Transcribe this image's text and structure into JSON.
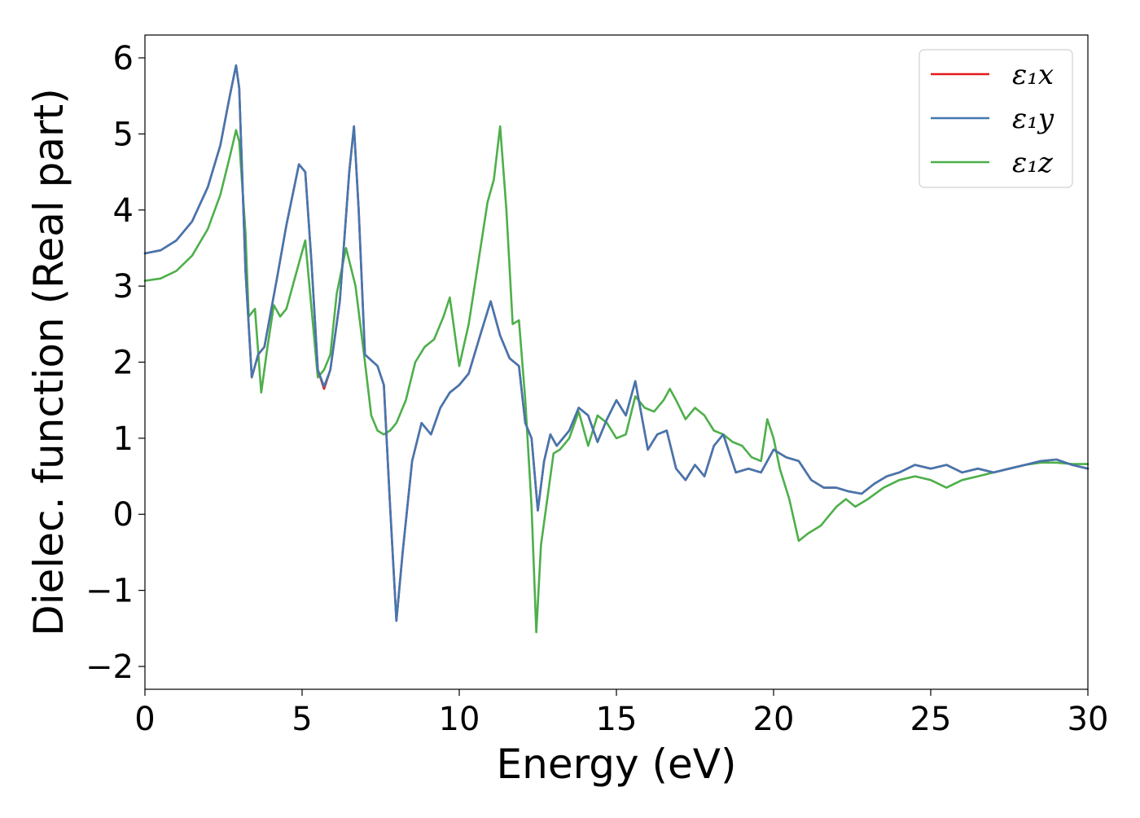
{
  "chart_data": {
    "type": "line",
    "title": "",
    "xlabel": "Energy (eV)",
    "ylabel": "Dielec. function (Real part)",
    "xlim": [
      0,
      30
    ],
    "ylim": [
      -2.3,
      6.3
    ],
    "xticks": [
      0,
      5,
      10,
      15,
      20,
      25,
      30
    ],
    "xtick_labels": [
      "0",
      "5",
      "10",
      "15",
      "20",
      "25",
      "30"
    ],
    "yticks": [
      -2,
      -1,
      0,
      1,
      2,
      3,
      4,
      5,
      6
    ],
    "ytick_labels": [
      "−2",
      "−1",
      "0",
      "1",
      "2",
      "3",
      "4",
      "5",
      "6"
    ],
    "grid": false,
    "legend_position": "top-right",
    "series": [
      {
        "name": "ε₁x",
        "color": "#e41a1c",
        "x": [
          0,
          0.5,
          1.0,
          1.5,
          2.0,
          2.4,
          2.7,
          2.9,
          3.0,
          3.2,
          3.4,
          3.6,
          3.8,
          4.2,
          4.5,
          4.9,
          5.1,
          5.3,
          5.5,
          5.7,
          5.9,
          6.2,
          6.5,
          6.65,
          6.8,
          7.0,
          7.4,
          7.6,
          7.8,
          8.0,
          8.2,
          8.5,
          8.8,
          9.1,
          9.4,
          9.7,
          10.0,
          10.3,
          10.7,
          11.0,
          11.3,
          11.6,
          11.9,
          12.1,
          12.3,
          12.5,
          12.7,
          12.9,
          13.1,
          13.5,
          13.8,
          14.1,
          14.4,
          14.7,
          15.0,
          15.3,
          15.6,
          16.0,
          16.3,
          16.6,
          16.9,
          17.2,
          17.5,
          17.8,
          18.1,
          18.4,
          18.8,
          19.2,
          19.6,
          20.0,
          20.4,
          20.8,
          21.2,
          21.6,
          22.0,
          22.4,
          22.8,
          23.2,
          23.6,
          24.0,
          24.5,
          25.0,
          25.5,
          26.0,
          26.5,
          27.0,
          27.5,
          28.0,
          28.5,
          29.0,
          29.5,
          30.0
        ],
        "values": [
          3.43,
          3.47,
          3.6,
          3.85,
          4.3,
          4.85,
          5.5,
          5.9,
          5.6,
          3.2,
          1.8,
          2.1,
          2.2,
          3.1,
          3.8,
          4.6,
          4.5,
          3.3,
          1.9,
          1.65,
          1.9,
          2.8,
          4.5,
          5.1,
          4.0,
          2.1,
          1.95,
          1.7,
          0.1,
          -1.4,
          -0.5,
          0.7,
          1.2,
          1.05,
          1.4,
          1.6,
          1.7,
          1.85,
          2.4,
          2.8,
          2.35,
          2.05,
          1.95,
          1.2,
          1.0,
          0.05,
          0.7,
          1.05,
          0.9,
          1.1,
          1.4,
          1.3,
          0.95,
          1.25,
          1.5,
          1.3,
          1.75,
          0.85,
          1.05,
          1.1,
          0.6,
          0.45,
          0.65,
          0.5,
          0.9,
          1.05,
          0.55,
          0.6,
          0.55,
          0.85,
          0.75,
          0.7,
          0.45,
          0.35,
          0.35,
          0.3,
          0.27,
          0.4,
          0.5,
          0.55,
          0.65,
          0.6,
          0.65,
          0.55,
          0.6,
          0.55,
          0.6,
          0.65,
          0.7,
          0.72,
          0.65,
          0.6
        ]
      },
      {
        "name": "ε₁y",
        "color": "#4277b0",
        "x": [
          0,
          0.5,
          1.0,
          1.5,
          2.0,
          2.4,
          2.7,
          2.9,
          3.0,
          3.2,
          3.4,
          3.6,
          3.8,
          4.2,
          4.5,
          4.9,
          5.1,
          5.3,
          5.5,
          5.7,
          5.9,
          6.2,
          6.5,
          6.65,
          6.8,
          7.0,
          7.4,
          7.6,
          7.8,
          8.0,
          8.2,
          8.5,
          8.8,
          9.1,
          9.4,
          9.7,
          10.0,
          10.3,
          10.7,
          11.0,
          11.3,
          11.6,
          11.9,
          12.1,
          12.3,
          12.5,
          12.7,
          12.9,
          13.1,
          13.5,
          13.8,
          14.1,
          14.4,
          14.7,
          15.0,
          15.3,
          15.6,
          16.0,
          16.3,
          16.6,
          16.9,
          17.2,
          17.5,
          17.8,
          18.1,
          18.4,
          18.8,
          19.2,
          19.6,
          20.0,
          20.4,
          20.8,
          21.2,
          21.6,
          22.0,
          22.4,
          22.8,
          23.2,
          23.6,
          24.0,
          24.5,
          25.0,
          25.5,
          26.0,
          26.5,
          27.0,
          27.5,
          28.0,
          28.5,
          29.0,
          29.5,
          30.0
        ],
        "values": [
          3.43,
          3.47,
          3.6,
          3.85,
          4.3,
          4.85,
          5.5,
          5.9,
          5.6,
          3.2,
          1.8,
          2.1,
          2.2,
          3.1,
          3.8,
          4.6,
          4.5,
          3.3,
          1.9,
          1.68,
          1.9,
          2.8,
          4.5,
          5.1,
          4.0,
          2.1,
          1.95,
          1.7,
          0.1,
          -1.4,
          -0.5,
          0.7,
          1.2,
          1.05,
          1.4,
          1.6,
          1.7,
          1.85,
          2.4,
          2.8,
          2.35,
          2.05,
          1.95,
          1.2,
          1.0,
          0.05,
          0.7,
          1.05,
          0.9,
          1.1,
          1.4,
          1.3,
          0.95,
          1.25,
          1.5,
          1.3,
          1.75,
          0.85,
          1.05,
          1.1,
          0.6,
          0.45,
          0.65,
          0.5,
          0.9,
          1.05,
          0.55,
          0.6,
          0.55,
          0.85,
          0.75,
          0.7,
          0.45,
          0.35,
          0.35,
          0.3,
          0.27,
          0.4,
          0.5,
          0.55,
          0.65,
          0.6,
          0.65,
          0.55,
          0.6,
          0.55,
          0.6,
          0.65,
          0.7,
          0.72,
          0.65,
          0.6
        ]
      },
      {
        "name": "ε₁z",
        "color": "#4daf4a",
        "x": [
          0,
          0.5,
          1.0,
          1.5,
          2.0,
          2.4,
          2.7,
          2.9,
          3.0,
          3.2,
          3.3,
          3.5,
          3.7,
          3.9,
          4.1,
          4.3,
          4.5,
          4.7,
          4.9,
          5.1,
          5.3,
          5.5,
          5.7,
          5.9,
          6.1,
          6.4,
          6.7,
          7.0,
          7.2,
          7.4,
          7.6,
          7.8,
          8.0,
          8.3,
          8.6,
          8.9,
          9.2,
          9.5,
          9.7,
          10.0,
          10.3,
          10.6,
          10.9,
          11.1,
          11.3,
          11.5,
          11.7,
          11.9,
          12.1,
          12.3,
          12.45,
          12.6,
          12.8,
          13.0,
          13.2,
          13.5,
          13.8,
          14.1,
          14.4,
          14.7,
          15.0,
          15.3,
          15.6,
          15.9,
          16.2,
          16.5,
          16.7,
          16.9,
          17.2,
          17.5,
          17.8,
          18.1,
          18.4,
          18.7,
          19.0,
          19.3,
          19.6,
          19.8,
          20.0,
          20.2,
          20.5,
          20.8,
          21.1,
          21.5,
          22.0,
          22.3,
          22.6,
          23.0,
          23.5,
          24.0,
          24.5,
          25.0,
          25.5,
          26.0,
          26.5,
          27.0,
          27.5,
          28.0,
          28.5,
          29.0,
          29.5,
          30.0
        ],
        "values": [
          3.07,
          3.1,
          3.2,
          3.4,
          3.75,
          4.2,
          4.7,
          5.05,
          4.9,
          3.7,
          2.6,
          2.7,
          1.6,
          2.2,
          2.75,
          2.6,
          2.7,
          3.0,
          3.3,
          3.6,
          2.7,
          1.8,
          1.9,
          2.1,
          2.9,
          3.5,
          3.0,
          2.0,
          1.3,
          1.1,
          1.05,
          1.1,
          1.2,
          1.5,
          2.0,
          2.2,
          2.3,
          2.6,
          2.85,
          1.95,
          2.5,
          3.3,
          4.1,
          4.4,
          5.1,
          4.0,
          2.5,
          2.55,
          1.5,
          0.1,
          -1.55,
          -0.4,
          0.2,
          0.8,
          0.85,
          1.0,
          1.35,
          0.9,
          1.3,
          1.2,
          1.0,
          1.05,
          1.55,
          1.4,
          1.35,
          1.5,
          1.65,
          1.5,
          1.25,
          1.4,
          1.3,
          1.1,
          1.05,
          0.95,
          0.9,
          0.75,
          0.7,
          1.25,
          1.0,
          0.6,
          0.2,
          -0.35,
          -0.25,
          -0.15,
          0.1,
          0.2,
          0.1,
          0.2,
          0.35,
          0.45,
          0.5,
          0.45,
          0.35,
          0.45,
          0.5,
          0.55,
          0.6,
          0.65,
          0.68,
          0.68,
          0.66,
          0.66
        ]
      }
    ]
  }
}
